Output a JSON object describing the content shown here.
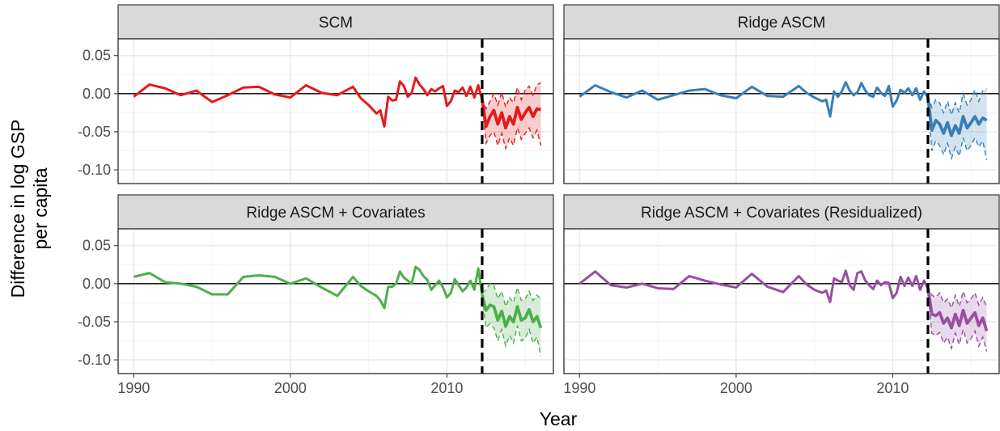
{
  "chart_data": {
    "type": "line",
    "xlabel": "Year",
    "ylabel_lines": [
      "Difference in log GSP",
      "per capita"
    ],
    "xlim": [
      1989,
      2016.8
    ],
    "ylim": [
      -0.118,
      0.072
    ],
    "x_ticks": [
      1990,
      2000,
      2010
    ],
    "y_ticks": [
      0.05,
      0.0,
      -0.05,
      -0.1
    ],
    "y_tick_labels": [
      "0.05",
      "0.00",
      "-0.05",
      "-0.10"
    ],
    "treatment_year": 2012.25,
    "zero_line": 0,
    "grid": true,
    "panels": [
      {
        "title": "SCM",
        "color": "#e41a1c",
        "pre": {
          "x": [
            1990,
            1991,
            1992,
            1993,
            1994,
            1995,
            1996,
            1997,
            1998,
            1999,
            2000,
            2001,
            2002,
            2003,
            2004,
            2004.5,
            2005,
            2005.5,
            2005.75,
            2006,
            2006.25,
            2006.5,
            2006.75,
            2007,
            2007.25,
            2007.5,
            2007.75,
            2008,
            2008.25,
            2008.5,
            2008.75,
            2009,
            2009.25,
            2009.5,
            2009.75,
            2010,
            2010.25,
            2010.5,
            2010.75,
            2011,
            2011.25,
            2011.5,
            2011.75,
            2012,
            2012.25
          ],
          "y": [
            -0.004,
            0.012,
            0.007,
            -0.002,
            0.004,
            -0.011,
            -0.002,
            0.008,
            0.009,
            -0.001,
            -0.005,
            0.011,
            0.001,
            -0.002,
            0.009,
            -0.006,
            -0.015,
            -0.026,
            -0.022,
            -0.043,
            -0.004,
            -0.009,
            -0.008,
            0.016,
            0.01,
            -0.004,
            0.001,
            0.021,
            0.012,
            0.006,
            -0.002,
            0.006,
            0.003,
            0.007,
            0.01,
            -0.016,
            -0.01,
            0.004,
            0.002,
            0.008,
            -0.003,
            0.009,
            -0.005,
            0.011,
            -0.008
          ]
        },
        "post": {
          "x": [
            2012.25,
            2012.5,
            2012.75,
            2013,
            2013.25,
            2013.5,
            2013.75,
            2014,
            2014.25,
            2014.5,
            2014.75,
            2015,
            2015.25,
            2015.5,
            2015.75,
            2016
          ],
          "y": [
            -0.008,
            -0.043,
            -0.03,
            -0.022,
            -0.04,
            -0.025,
            -0.045,
            -0.03,
            -0.04,
            -0.018,
            -0.034,
            -0.025,
            -0.018,
            -0.03,
            -0.02,
            -0.021
          ],
          "lower": [
            -0.01,
            -0.065,
            -0.055,
            -0.05,
            -0.068,
            -0.052,
            -0.072,
            -0.058,
            -0.068,
            -0.045,
            -0.06,
            -0.052,
            -0.045,
            -0.058,
            -0.048,
            -0.068
          ],
          "upper": [
            -0.006,
            -0.02,
            -0.01,
            0.0,
            -0.015,
            0.002,
            -0.018,
            -0.005,
            -0.012,
            0.008,
            -0.008,
            0.005,
            0.01,
            -0.002,
            0.012,
            0.014
          ]
        }
      },
      {
        "title": "Ridge ASCM",
        "color": "#377eb8",
        "pre": {
          "x": [
            1990,
            1991,
            1992,
            1993,
            1994,
            1995,
            1996,
            1997,
            1998,
            1999,
            2000,
            2001,
            2002,
            2003,
            2004,
            2004.5,
            2005,
            2005.5,
            2005.75,
            2006,
            2006.25,
            2006.5,
            2006.75,
            2007,
            2007.25,
            2007.5,
            2007.75,
            2008,
            2008.25,
            2008.5,
            2008.75,
            2009,
            2009.25,
            2009.5,
            2009.75,
            2010,
            2010.25,
            2010.5,
            2010.75,
            2011,
            2011.25,
            2011.5,
            2011.75,
            2012,
            2012.25
          ],
          "y": [
            -0.004,
            0.011,
            0.002,
            -0.005,
            0.004,
            -0.008,
            -0.002,
            0.004,
            0.006,
            -0.002,
            -0.006,
            0.009,
            -0.003,
            -0.004,
            0.01,
            0.001,
            -0.005,
            -0.01,
            -0.008,
            -0.03,
            0.003,
            -0.004,
            0.003,
            0.015,
            0.004,
            -0.002,
            0.002,
            0.014,
            0.004,
            -0.002,
            -0.004,
            0.008,
            0.001,
            -0.003,
            0.01,
            -0.017,
            -0.009,
            0.005,
            0.001,
            0.007,
            -0.002,
            0.007,
            -0.008,
            0.003,
            -0.005
          ]
        },
        "post": {
          "x": [
            2012.25,
            2012.5,
            2012.75,
            2013,
            2013.25,
            2013.5,
            2013.75,
            2014,
            2014.25,
            2014.5,
            2014.75,
            2015,
            2015.25,
            2015.5,
            2015.75,
            2016
          ],
          "y": [
            -0.005,
            -0.048,
            -0.035,
            -0.04,
            -0.052,
            -0.038,
            -0.055,
            -0.042,
            -0.052,
            -0.03,
            -0.045,
            -0.038,
            -0.03,
            -0.04,
            -0.032,
            -0.035
          ],
          "lower": [
            -0.008,
            -0.075,
            -0.062,
            -0.068,
            -0.08,
            -0.065,
            -0.085,
            -0.07,
            -0.082,
            -0.058,
            -0.075,
            -0.068,
            -0.058,
            -0.07,
            -0.062,
            -0.087
          ],
          "upper": [
            -0.003,
            -0.018,
            -0.008,
            -0.012,
            -0.025,
            -0.01,
            -0.028,
            -0.012,
            -0.025,
            0.0,
            -0.015,
            -0.008,
            0.005,
            -0.01,
            0.004,
            0.006
          ]
        }
      },
      {
        "title": "Ridge ASCM + Covariates",
        "color": "#4daf4a",
        "pre": {
          "x": [
            1990,
            1991,
            1992,
            1993,
            1994,
            1995,
            1996,
            1997,
            1998,
            1999,
            2000,
            2001,
            2002,
            2003,
            2004,
            2004.5,
            2005,
            2005.5,
            2005.75,
            2006,
            2006.25,
            2006.5,
            2006.75,
            2007,
            2007.25,
            2007.5,
            2007.75,
            2008,
            2008.25,
            2008.5,
            2008.75,
            2009,
            2009.25,
            2009.5,
            2009.75,
            2010,
            2010.25,
            2010.5,
            2010.75,
            2011,
            2011.25,
            2011.5,
            2011.75,
            2012,
            2012.25
          ],
          "y": [
            0.009,
            0.014,
            0.002,
            0.0,
            -0.004,
            -0.014,
            -0.014,
            0.009,
            0.011,
            0.009,
            0.0,
            0.007,
            -0.005,
            -0.016,
            0.009,
            -0.003,
            -0.01,
            -0.016,
            -0.022,
            -0.032,
            -0.004,
            -0.004,
            0.0,
            0.016,
            0.008,
            0.004,
            0.0,
            0.022,
            0.018,
            0.01,
            0.005,
            -0.008,
            -0.002,
            0.004,
            -0.005,
            -0.018,
            -0.012,
            0.006,
            -0.002,
            -0.01,
            -0.005,
            0.004,
            -0.008,
            0.02,
            -0.015
          ]
        },
        "post": {
          "x": [
            2012.25,
            2012.5,
            2012.75,
            2013,
            2013.25,
            2013.5,
            2013.75,
            2014,
            2014.25,
            2014.5,
            2014.75,
            2015,
            2015.25,
            2015.5,
            2015.75,
            2016
          ],
          "y": [
            -0.015,
            -0.035,
            -0.028,
            -0.03,
            -0.048,
            -0.036,
            -0.056,
            -0.043,
            -0.05,
            -0.03,
            -0.048,
            -0.045,
            -0.034,
            -0.05,
            -0.043,
            -0.058
          ],
          "lower": [
            -0.018,
            -0.058,
            -0.052,
            -0.058,
            -0.075,
            -0.06,
            -0.082,
            -0.068,
            -0.078,
            -0.055,
            -0.075,
            -0.072,
            -0.06,
            -0.078,
            -0.07,
            -0.095
          ],
          "upper": [
            -0.012,
            -0.008,
            0.0,
            -0.002,
            -0.02,
            -0.01,
            -0.03,
            -0.018,
            -0.025,
            -0.005,
            -0.022,
            -0.02,
            -0.01,
            -0.022,
            -0.015,
            -0.02
          ]
        }
      },
      {
        "title": "Ridge ASCM + Covariates (Residualized)",
        "color": "#984ea3",
        "pre": {
          "x": [
            1990,
            1991,
            1992,
            1993,
            1994,
            1995,
            1996,
            1997,
            1998,
            1999,
            2000,
            2001,
            2002,
            2003,
            2004,
            2004.5,
            2005,
            2005.5,
            2005.75,
            2006,
            2006.25,
            2006.5,
            2006.75,
            2007,
            2007.25,
            2007.5,
            2007.75,
            2008,
            2008.25,
            2008.5,
            2008.75,
            2009,
            2009.25,
            2009.5,
            2009.75,
            2010,
            2010.25,
            2010.5,
            2010.75,
            2011,
            2011.25,
            2011.5,
            2011.75,
            2012,
            2012.25
          ],
          "y": [
            0.0,
            0.016,
            -0.002,
            -0.005,
            0.0,
            -0.006,
            -0.007,
            0.01,
            0.004,
            -0.001,
            -0.005,
            0.013,
            -0.004,
            -0.011,
            0.01,
            -0.001,
            -0.008,
            -0.012,
            -0.009,
            -0.024,
            0.007,
            0.004,
            0.002,
            0.017,
            -0.002,
            -0.008,
            0.014,
            0.016,
            0.004,
            -0.002,
            -0.007,
            0.004,
            -0.002,
            0.002,
            0.001,
            -0.019,
            -0.012,
            0.009,
            -0.003,
            0.008,
            -0.003,
            0.01,
            -0.008,
            0.004,
            -0.006
          ]
        },
        "post": {
          "x": [
            2012.25,
            2012.5,
            2012.75,
            2013,
            2013.25,
            2013.5,
            2013.75,
            2014,
            2014.25,
            2014.5,
            2014.75,
            2015,
            2015.25,
            2015.5,
            2015.75,
            2016
          ],
          "y": [
            -0.006,
            -0.04,
            -0.042,
            -0.038,
            -0.052,
            -0.045,
            -0.058,
            -0.04,
            -0.055,
            -0.035,
            -0.052,
            -0.045,
            -0.038,
            -0.055,
            -0.045,
            -0.062
          ],
          "lower": [
            -0.009,
            -0.065,
            -0.068,
            -0.064,
            -0.078,
            -0.07,
            -0.085,
            -0.065,
            -0.08,
            -0.06,
            -0.078,
            -0.072,
            -0.062,
            -0.082,
            -0.07,
            -0.089
          ],
          "upper": [
            -0.003,
            -0.015,
            -0.018,
            -0.012,
            -0.025,
            -0.02,
            -0.032,
            -0.015,
            -0.03,
            -0.01,
            -0.025,
            -0.02,
            -0.012,
            -0.028,
            -0.018,
            -0.03
          ]
        }
      }
    ]
  }
}
